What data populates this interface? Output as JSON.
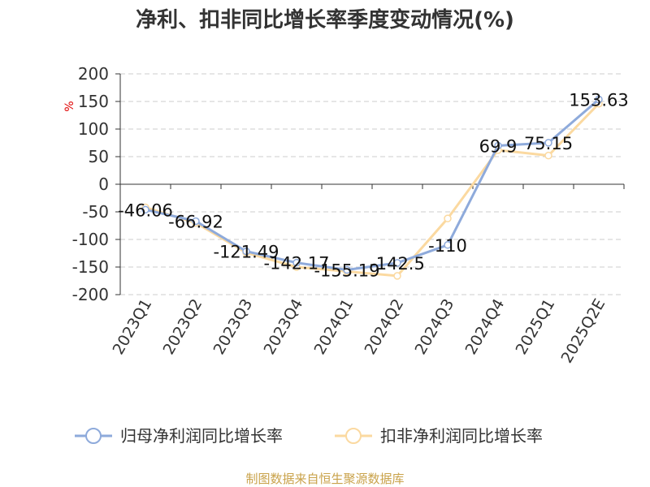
{
  "chart_data": {
    "type": "line",
    "title": "净利、扣非同比增长率季度变动情况(%)",
    "ylabel": "%",
    "ylim": [
      -200,
      200
    ],
    "yticks": [
      200,
      150,
      100,
      50,
      0,
      -50,
      -100,
      -150,
      -200
    ],
    "grid": true,
    "legend_placement": "bottom",
    "categories": [
      "2023Q1",
      "2023Q2",
      "2023Q3",
      "2023Q4",
      "2024Q1",
      "2024Q2",
      "2024Q3",
      "2024Q4",
      "2025Q1",
      "2025Q2E"
    ],
    "series": [
      {
        "name": "归母净利润同比增长率",
        "color": "#8eaadb",
        "values": [
          -46.06,
          -66.92,
          -121.49,
          -142.17,
          -155.19,
          -142.5,
          -110,
          69.9,
          75.15,
          153.63
        ],
        "labels": [
          "-46.06",
          "-66.92",
          "-121.49",
          "-142.17",
          "-155.19",
          "-142.5",
          "-110",
          "69.9",
          "75.15",
          "153.63"
        ]
      },
      {
        "name": "扣非净利润同比增长率",
        "color": "#fbd9a0",
        "values": [
          -42,
          -70,
          -124,
          -150,
          -158,
          -166,
          -62,
          62,
          52,
          146
        ]
      }
    ],
    "source": "制图数据来自恒生聚源数据库"
  }
}
